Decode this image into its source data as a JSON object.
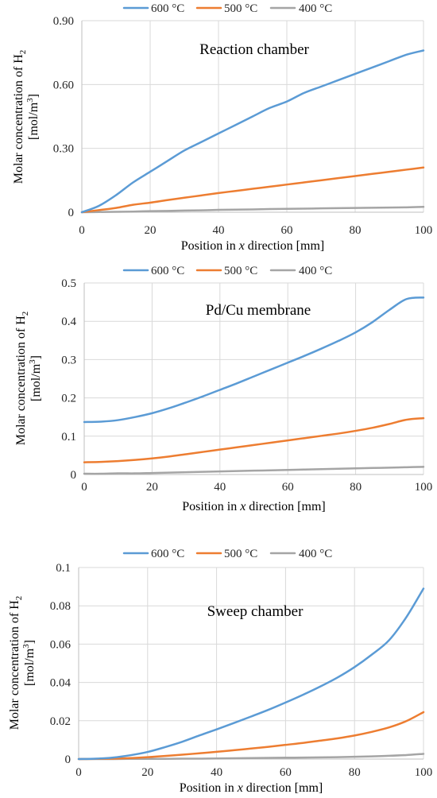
{
  "chart_data": [
    {
      "type": "line",
      "title": "Reaction chamber",
      "xlabel_parts": [
        "Position in ",
        "x",
        " direction [mm]"
      ],
      "ylabel_line1": "Molar concentration of H",
      "ylabel_sub": "2",
      "ylabel_line2": "[mol/m",
      "ylabel_sup": "3",
      "ylabel_close": "]",
      "xlim": [
        0,
        100
      ],
      "ylim": [
        0,
        0.9
      ],
      "xticks": [
        0,
        20,
        40,
        60,
        80,
        100
      ],
      "xtick_labels": [
        "0",
        "20",
        "40",
        "60",
        "80",
        "100"
      ],
      "yticks": [
        0,
        0.3,
        0.6,
        0.9
      ],
      "ytick_labels": [
        "0",
        "0.30",
        "0.60",
        "0.90"
      ],
      "grid": true,
      "legend_position": "top",
      "x": [
        0,
        5,
        10,
        15,
        20,
        25,
        30,
        35,
        40,
        45,
        50,
        55,
        60,
        65,
        70,
        75,
        80,
        85,
        90,
        95,
        100
      ],
      "series": [
        {
          "name": "600 °C",
          "color": "#5b9bd5",
          "values": [
            0,
            0.03,
            0.08,
            0.14,
            0.19,
            0.24,
            0.29,
            0.33,
            0.37,
            0.41,
            0.45,
            0.49,
            0.52,
            0.56,
            0.59,
            0.62,
            0.65,
            0.68,
            0.71,
            0.74,
            0.76
          ]
        },
        {
          "name": "500 °C",
          "color": "#ed7d31",
          "values": [
            0,
            0.01,
            0.02,
            0.035,
            0.045,
            0.057,
            0.068,
            0.079,
            0.09,
            0.1,
            0.11,
            0.12,
            0.13,
            0.14,
            0.15,
            0.16,
            0.17,
            0.18,
            0.19,
            0.2,
            0.21
          ]
        },
        {
          "name": "400 °C",
          "color": "#a5a5a5",
          "values": [
            0,
            0.001,
            0.002,
            0.003,
            0.005,
            0.006,
            0.008,
            0.009,
            0.011,
            0.012,
            0.013,
            0.015,
            0.016,
            0.017,
            0.018,
            0.019,
            0.02,
            0.021,
            0.022,
            0.023,
            0.025
          ]
        }
      ]
    },
    {
      "type": "line",
      "title": "Pd/Cu membrane",
      "xlabel_parts": [
        "Position in ",
        "x",
        " direction [mm]"
      ],
      "ylabel_line1": "Molar concentration of H",
      "ylabel_sub": "2",
      "ylabel_line2": "[mol/m",
      "ylabel_sup": "3",
      "ylabel_close": "]",
      "xlim": [
        0,
        100
      ],
      "ylim": [
        0,
        0.5
      ],
      "xticks": [
        0,
        20,
        40,
        60,
        80,
        100
      ],
      "xtick_labels": [
        "0",
        "20",
        "40",
        "60",
        "80",
        "100"
      ],
      "yticks": [
        0,
        0.1,
        0.2,
        0.3,
        0.4,
        0.5
      ],
      "ytick_labels": [
        "0",
        "0.1",
        "0.2",
        "0.3",
        "0.4",
        "0.5"
      ],
      "grid": true,
      "legend_position": "top",
      "x": [
        0,
        5,
        10,
        15,
        20,
        25,
        30,
        35,
        40,
        45,
        50,
        55,
        60,
        65,
        70,
        75,
        80,
        85,
        90,
        95,
        100
      ],
      "series": [
        {
          "name": "600 °C",
          "color": "#5b9bd5",
          "values": [
            0.137,
            0.138,
            0.142,
            0.15,
            0.16,
            0.173,
            0.188,
            0.204,
            0.221,
            0.238,
            0.256,
            0.274,
            0.292,
            0.31,
            0.329,
            0.349,
            0.371,
            0.398,
            0.43,
            0.458,
            0.462
          ]
        },
        {
          "name": "500 °C",
          "color": "#ed7d31",
          "values": [
            0.032,
            0.033,
            0.035,
            0.038,
            0.042,
            0.047,
            0.053,
            0.059,
            0.065,
            0.071,
            0.077,
            0.083,
            0.089,
            0.095,
            0.101,
            0.107,
            0.114,
            0.122,
            0.132,
            0.143,
            0.147
          ]
        },
        {
          "name": "400 °C",
          "color": "#a5a5a5",
          "values": [
            0.002,
            0.002,
            0.003,
            0.003,
            0.004,
            0.005,
            0.006,
            0.007,
            0.008,
            0.009,
            0.01,
            0.011,
            0.012,
            0.013,
            0.014,
            0.015,
            0.016,
            0.017,
            0.018,
            0.019,
            0.02
          ]
        }
      ]
    },
    {
      "type": "line",
      "title": "Sweep chamber",
      "xlabel_parts": [
        "Position in ",
        "x",
        " direction [mm]"
      ],
      "ylabel_line1": "Molar concentration of H",
      "ylabel_sub": "2",
      "ylabel_line2": "[mol/m",
      "ylabel_sup": "3",
      "ylabel_close": "]",
      "xlim": [
        0,
        100
      ],
      "ylim": [
        0,
        0.1
      ],
      "xticks": [
        0,
        20,
        40,
        60,
        80,
        100
      ],
      "xtick_labels": [
        "0",
        "20",
        "40",
        "60",
        "80",
        "100"
      ],
      "yticks": [
        0,
        0.02,
        0.04,
        0.06,
        0.08,
        0.1
      ],
      "ytick_labels": [
        "0",
        "0.02",
        "0.04",
        "0.06",
        "0.08",
        "0.1"
      ],
      "grid": true,
      "legend_position": "top",
      "x": [
        0,
        5,
        10,
        15,
        20,
        25,
        30,
        35,
        40,
        45,
        50,
        55,
        60,
        65,
        70,
        75,
        80,
        85,
        90,
        95,
        100
      ],
      "series": [
        {
          "name": "600 °C",
          "color": "#5b9bd5",
          "values": [
            0,
            0.0002,
            0.0008,
            0.002,
            0.0037,
            0.0062,
            0.009,
            0.0123,
            0.0155,
            0.0188,
            0.0222,
            0.0257,
            0.0295,
            0.0335,
            0.0378,
            0.0425,
            0.048,
            0.0545,
            0.062,
            0.074,
            0.089
          ]
        },
        {
          "name": "500 °C",
          "color": "#ed7d31",
          "values": [
            0,
            0.0001,
            0.0002,
            0.0005,
            0.001,
            0.0016,
            0.0023,
            0.003,
            0.0038,
            0.0046,
            0.0055,
            0.0064,
            0.0074,
            0.0084,
            0.0096,
            0.0108,
            0.0123,
            0.0142,
            0.0165,
            0.0198,
            0.0245
          ]
        },
        {
          "name": "400 °C",
          "color": "#a5a5a5",
          "values": [
            0,
            0,
            0,
            0.0001,
            0.0001,
            0.0001,
            0.0002,
            0.0002,
            0.0003,
            0.0004,
            0.0005,
            0.0006,
            0.0007,
            0.0008,
            0.0009,
            0.001,
            0.0012,
            0.0014,
            0.0017,
            0.0021,
            0.0027
          ]
        }
      ]
    }
  ]
}
